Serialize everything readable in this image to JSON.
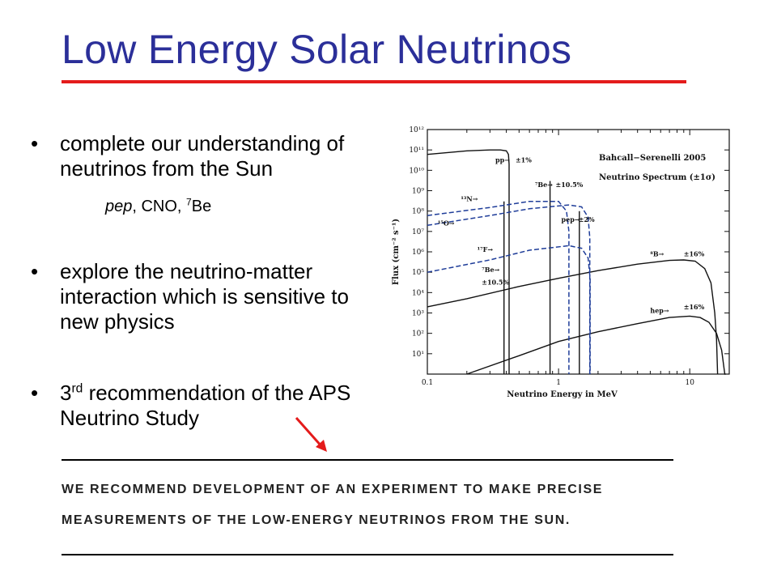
{
  "slide": {
    "title": "Low Energy Solar Neutrinos",
    "title_color": "#2b2f99",
    "rule_color": "#e41b1b"
  },
  "bullets": [
    {
      "text": "complete our understanding of neutrinos from the Sun"
    },
    {
      "text": "explore the neutrino-matter interaction which is sensitive to new physics"
    },
    {
      "pre": "3",
      "sup": "rd",
      "text": " recommendation of the APS Neutrino Study"
    }
  ],
  "sub_note": {
    "italic": "pep",
    "mid": ", CNO, ",
    "sup": "7",
    "tail": "Be"
  },
  "quote": {
    "line1": "WE RECOMMEND DEVELOPMENT OF AN EXPERIMENT TO MAKE PRECISE",
    "line2": "MEASUREMENTS OF THE LOW-ENERGY NEUTRINOS FROM THE SUN."
  },
  "chart_data": {
    "type": "line",
    "xscale": "log",
    "yscale": "log",
    "xlim": [
      0.1,
      20
    ],
    "ylim": [
      1,
      1000000000000.0
    ],
    "xlabel": "Neutrino Energy in MeV",
    "ylabel": "Flux (cm⁻² s⁻¹)",
    "title": "Bahcall−Serenelli 2005",
    "subtitle": "Neutrino Spectrum (±1σ)",
    "x_ticks": [
      {
        "v": 0.1,
        "label": "0.1"
      },
      {
        "v": 1,
        "label": "1"
      },
      {
        "v": 10,
        "label": "10"
      }
    ],
    "y_ticks": [
      {
        "v": 1000000000000.0,
        "label": "10¹²"
      },
      {
        "v": 100000000000.0,
        "label": "10¹¹"
      },
      {
        "v": 10000000000.0,
        "label": "10¹⁰"
      },
      {
        "v": 1000000000.0,
        "label": "10⁹"
      },
      {
        "v": 100000000.0,
        "label": "10⁸"
      },
      {
        "v": 10000000.0,
        "label": "10⁷"
      },
      {
        "v": 1000000.0,
        "label": "10⁶"
      },
      {
        "v": 100000.0,
        "label": "10⁵"
      },
      {
        "v": 10000.0,
        "label": "10⁴"
      },
      {
        "v": 1000.0,
        "label": "10³"
      },
      {
        "v": 100.0,
        "label": "10²"
      },
      {
        "v": 10.0,
        "label": "10¹"
      }
    ],
    "curve_color": "#111111",
    "dashed_color": "#1f3d99",
    "series": [
      {
        "name": "pp",
        "style": "solid",
        "x": [
          0.1,
          0.2,
          0.3,
          0.36,
          0.4,
          0.415,
          0.42,
          0.42
        ],
        "y": [
          60000000000.0,
          90000000000.0,
          100000000000.0,
          100000000000.0,
          90000000000.0,
          60000000000.0,
          20000000000.0,
          1
        ]
      },
      {
        "name": "pep",
        "style": "solid",
        "x": [
          1.44,
          1.44
        ],
        "y": [
          1,
          100000000.0
        ]
      },
      {
        "name": "⁷Be",
        "style": "solid",
        "x": [
          0.862,
          0.862
        ],
        "y": [
          1,
          3000000000.0
        ]
      },
      {
        "name": "⁷Be",
        "style": "solid",
        "x": [
          0.384,
          0.384
        ],
        "y": [
          1,
          300000000.0
        ]
      },
      {
        "name": "⁸B",
        "style": "solid",
        "x": [
          0.1,
          0.2,
          0.5,
          1,
          2,
          4,
          7,
          9,
          11,
          13,
          14.5,
          15.5,
          16,
          16.3
        ],
        "y": [
          2000.0,
          5000.0,
          20000.0,
          50000.0,
          120000.0,
          250000.0,
          380000.0,
          400000.0,
          350000.0,
          150000.0,
          30000.0,
          1000.0,
          50.0,
          1
        ]
      },
      {
        "name": "hep",
        "style": "solid",
        "x": [
          0.2,
          0.5,
          1,
          2,
          4,
          7,
          10,
          12,
          14,
          16,
          17.5,
          18.5,
          18.8
        ],
        "y": [
          1,
          8,
          40.0,
          120.0,
          300.0,
          600.0,
          700.0,
          600.0,
          350.0,
          100.0,
          15.0,
          1,
          1
        ]
      },
      {
        "name": "¹³N",
        "style": "dashed",
        "x": [
          0.1,
          0.3,
          0.6,
          1.0,
          1.15,
          1.2,
          1.2
        ],
        "y": [
          60000000.0,
          150000000.0,
          300000000.0,
          300000000.0,
          100000000.0,
          10000000.0,
          1
        ]
      },
      {
        "name": "¹⁵O",
        "style": "dashed",
        "x": [
          0.1,
          0.3,
          0.6,
          1.2,
          1.5,
          1.68,
          1.73,
          1.73
        ],
        "y": [
          20000000.0,
          60000000.0,
          130000000.0,
          200000000.0,
          160000000.0,
          50000000.0,
          5000000.0,
          1
        ]
      },
      {
        "name": "¹⁷F",
        "style": "dashed",
        "x": [
          0.1,
          0.3,
          0.6,
          1.2,
          1.5,
          1.68,
          1.74,
          1.74
        ],
        "y": [
          100000.0,
          400000.0,
          1200000.0,
          2000000.0,
          1500000.0,
          500000.0,
          50000.0,
          1
        ]
      }
    ],
    "annotations": [
      {
        "text": "pp→",
        "x": 0.33,
        "y": 25000000000.0
      },
      {
        "text": "±1%",
        "x": 0.47,
        "y": 25000000000.0
      },
      {
        "text": "⁷Be→",
        "x": 0.66,
        "y": 1500000000.0
      },
      {
        "text": "±10.5%",
        "x": 0.95,
        "y": 1500000000.0
      },
      {
        "text": "¹³N→",
        "x": 0.18,
        "y": 300000000.0
      },
      {
        "text": "¹⁵O→",
        "x": 0.12,
        "y": 20000000.0
      },
      {
        "text": "pep→",
        "x": 1.05,
        "y": 30000000.0
      },
      {
        "text": "±2%",
        "x": 1.42,
        "y": 30000000.0
      },
      {
        "text": "¹⁷F→",
        "x": 0.24,
        "y": 1000000.0
      },
      {
        "text": "⁷Be→",
        "x": 0.26,
        "y": 100000.0
      },
      {
        "text": "±10.5%",
        "x": 0.26,
        "y": 25000.0
      },
      {
        "text": "⁸B→",
        "x": 5,
        "y": 600000.0
      },
      {
        "text": "±16%",
        "x": 9,
        "y": 600000.0
      },
      {
        "text": "hep→",
        "x": 5,
        "y": 1000.0
      },
      {
        "text": "±16%",
        "x": 9,
        "y": 1500.0
      }
    ]
  }
}
